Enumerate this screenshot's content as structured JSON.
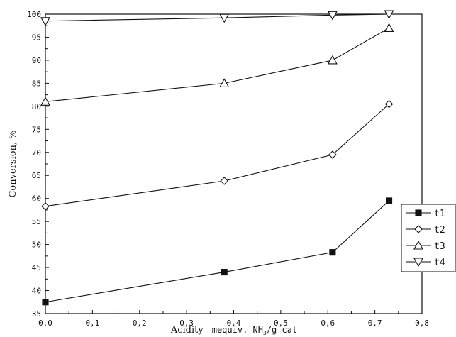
{
  "chart_data": {
    "type": "line",
    "ylabel": "Conversion, %",
    "xlabel_serif": "Acidity",
    "xlabel_mono": "mequiv. NH",
    "xlabel_sub": "3",
    "xlabel_tail": "/g cat",
    "xlim": [
      0.0,
      0.8
    ],
    "ylim": [
      35,
      100
    ],
    "x_ticks": [
      "0,0",
      "0,1",
      "0,2",
      "0,3",
      "0,4",
      "0,5",
      "0,6",
      "0,7",
      "0,8"
    ],
    "y_ticks": [
      "35",
      "40",
      "45",
      "50",
      "55",
      "60",
      "65",
      "70",
      "75",
      "80",
      "85",
      "90",
      "95",
      "100"
    ],
    "legend_position": "lower-right",
    "series": [
      {
        "name": "t1",
        "marker": "filled-square",
        "x": [
          0.0,
          0.38,
          0.61,
          0.73
        ],
        "y": [
          37.5,
          44.0,
          48.3,
          59.5
        ]
      },
      {
        "name": "t2",
        "marker": "open-diamond",
        "x": [
          0.0,
          0.38,
          0.61,
          0.73
        ],
        "y": [
          58.3,
          63.8,
          69.5,
          80.5
        ]
      },
      {
        "name": "t3",
        "marker": "open-triangle-up",
        "x": [
          0.0,
          0.38,
          0.61,
          0.73
        ],
        "y": [
          81.0,
          85.0,
          90.0,
          97.0
        ]
      },
      {
        "name": "t4",
        "marker": "open-triangle-down",
        "x": [
          0.0,
          0.38,
          0.61,
          0.73
        ],
        "y": [
          98.5,
          99.2,
          99.8,
          100.0
        ]
      }
    ]
  }
}
